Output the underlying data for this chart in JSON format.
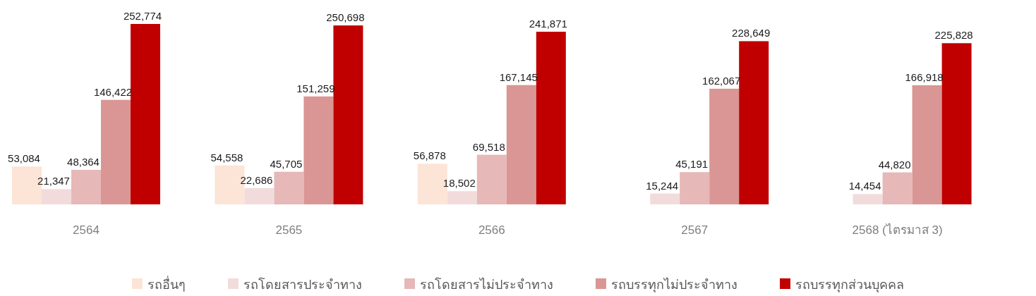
{
  "chart_data": {
    "type": "bar",
    "categories": [
      "2564",
      "2565",
      "2566",
      "2567",
      "2568 (ไตรมาส 3)"
    ],
    "series": [
      {
        "name": "รถอื่นๆ",
        "color": "#fce4d6",
        "values": [
          53084,
          54558,
          56878,
          null,
          null
        ],
        "value_labels": [
          "53,084",
          "54,558",
          "56,878",
          null,
          null
        ]
      },
      {
        "name": "รถโดยสารประจำทาง",
        "color": "#f2dcdb",
        "values": [
          21347,
          22686,
          18502,
          15244,
          14454
        ],
        "value_labels": [
          "21,347",
          "22,686",
          "18,502",
          "15,244",
          "14,454"
        ]
      },
      {
        "name": "รถโดยสารไม่ประจำทาง",
        "color": "#e6b8b7",
        "values": [
          48364,
          45705,
          69518,
          45191,
          44820
        ],
        "value_labels": [
          "48,364",
          "45,705",
          "69,518",
          "45,191",
          "44,820"
        ]
      },
      {
        "name": "รถบรรทุกไม่ประจำทาง",
        "color": "#d99694",
        "values": [
          146422,
          151259,
          167145,
          162067,
          166918
        ],
        "value_labels": [
          "146,422",
          "151,259",
          "167,145",
          "162,067",
          "166,918"
        ]
      },
      {
        "name": "รถบรรทุกส่วนบุคคล",
        "color": "#c00000",
        "values": [
          252774,
          250698,
          241871,
          228649,
          225828
        ],
        "value_labels": [
          "252,774",
          "250,698",
          "241,871",
          "228,649",
          "225,828"
        ]
      }
    ],
    "legend": "bottom"
  }
}
